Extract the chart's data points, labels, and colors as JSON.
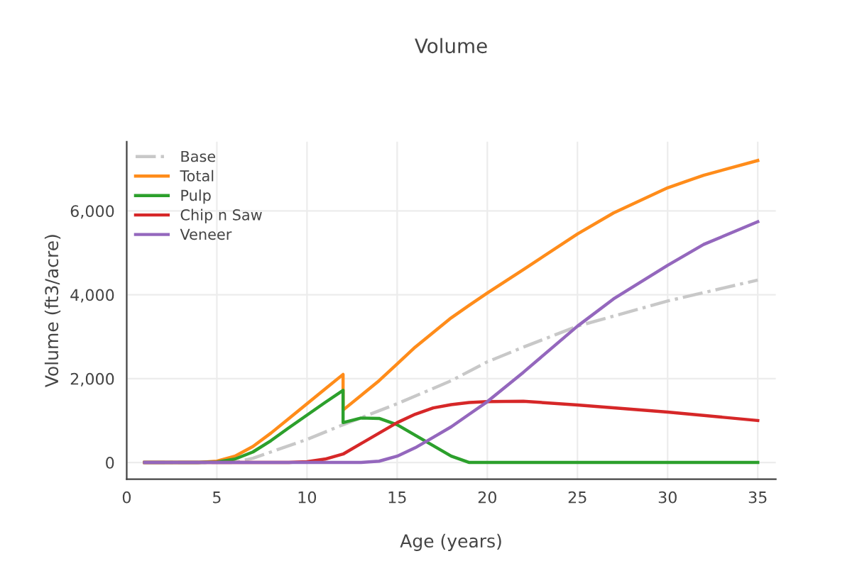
{
  "chart_data": {
    "type": "line",
    "title": "Volume",
    "xlabel": "Age (years)",
    "ylabel": "Volume (ft3/acre)",
    "xlim": [
      0,
      36
    ],
    "xticks": [
      0,
      5,
      10,
      15,
      20,
      25,
      30,
      35
    ],
    "ylim": [
      -400,
      7650
    ],
    "yticks": [
      0,
      {
        "value": 2000,
        "label": "2,000"
      },
      {
        "value": 4000,
        "label": "4,000"
      },
      {
        "value": 6000,
        "label": "6,000"
      }
    ],
    "grid": true,
    "legend": "top left",
    "series": [
      {
        "name": "Base",
        "color": "#c8c8c8",
        "line_style": "dashdot",
        "x": [
          1,
          5,
          6,
          7,
          8,
          10,
          12,
          15,
          18,
          20,
          22,
          25,
          30,
          35
        ],
        "values": [
          0,
          0,
          0,
          100,
          250,
          550,
          900,
          1400,
          1950,
          2400,
          2750,
          3250,
          3850,
          4350
        ]
      },
      {
        "name": "Total",
        "color": "#ff8c1a",
        "x": [
          1,
          4,
          5,
          6,
          7,
          8,
          9,
          10,
          11,
          12,
          12,
          13,
          14,
          15,
          16,
          17,
          18,
          19,
          20,
          22,
          25,
          27,
          30,
          32,
          35
        ],
        "values": [
          0,
          0,
          30,
          150,
          380,
          700,
          1050,
          1400,
          1750,
          2100,
          1250,
          1600,
          1950,
          2350,
          2750,
          3100,
          3450,
          3750,
          4040,
          4600,
          5450,
          5950,
          6550,
          6850,
          7200
        ]
      },
      {
        "name": "Pulp",
        "color": "#2ca02c",
        "x": [
          1,
          4,
          5,
          6,
          7,
          8,
          9,
          10,
          11,
          12,
          12,
          13,
          14,
          15,
          16,
          17,
          18,
          19,
          35
        ],
        "values": [
          0,
          0,
          10,
          80,
          250,
          520,
          830,
          1130,
          1430,
          1720,
          950,
          1060,
          1050,
          900,
          650,
          400,
          150,
          0,
          0
        ]
      },
      {
        "name": "Chip n Saw",
        "color": "#d62728",
        "x": [
          1,
          9,
          10,
          11,
          12,
          13,
          14,
          15,
          16,
          17,
          18,
          19,
          20,
          22,
          25,
          30,
          35
        ],
        "values": [
          0,
          0,
          20,
          80,
          200,
          450,
          700,
          950,
          1150,
          1300,
          1380,
          1430,
          1450,
          1460,
          1370,
          1200,
          1000
        ]
      },
      {
        "name": "Veneer",
        "color": "#9467bd",
        "x": [
          1,
          13,
          14,
          15,
          16,
          17,
          18,
          19,
          20,
          22,
          25,
          27,
          30,
          32,
          35
        ],
        "values": [
          0,
          0,
          30,
          150,
          350,
          600,
          850,
          1150,
          1450,
          2150,
          3250,
          3900,
          4700,
          5200,
          5740
        ]
      }
    ]
  }
}
